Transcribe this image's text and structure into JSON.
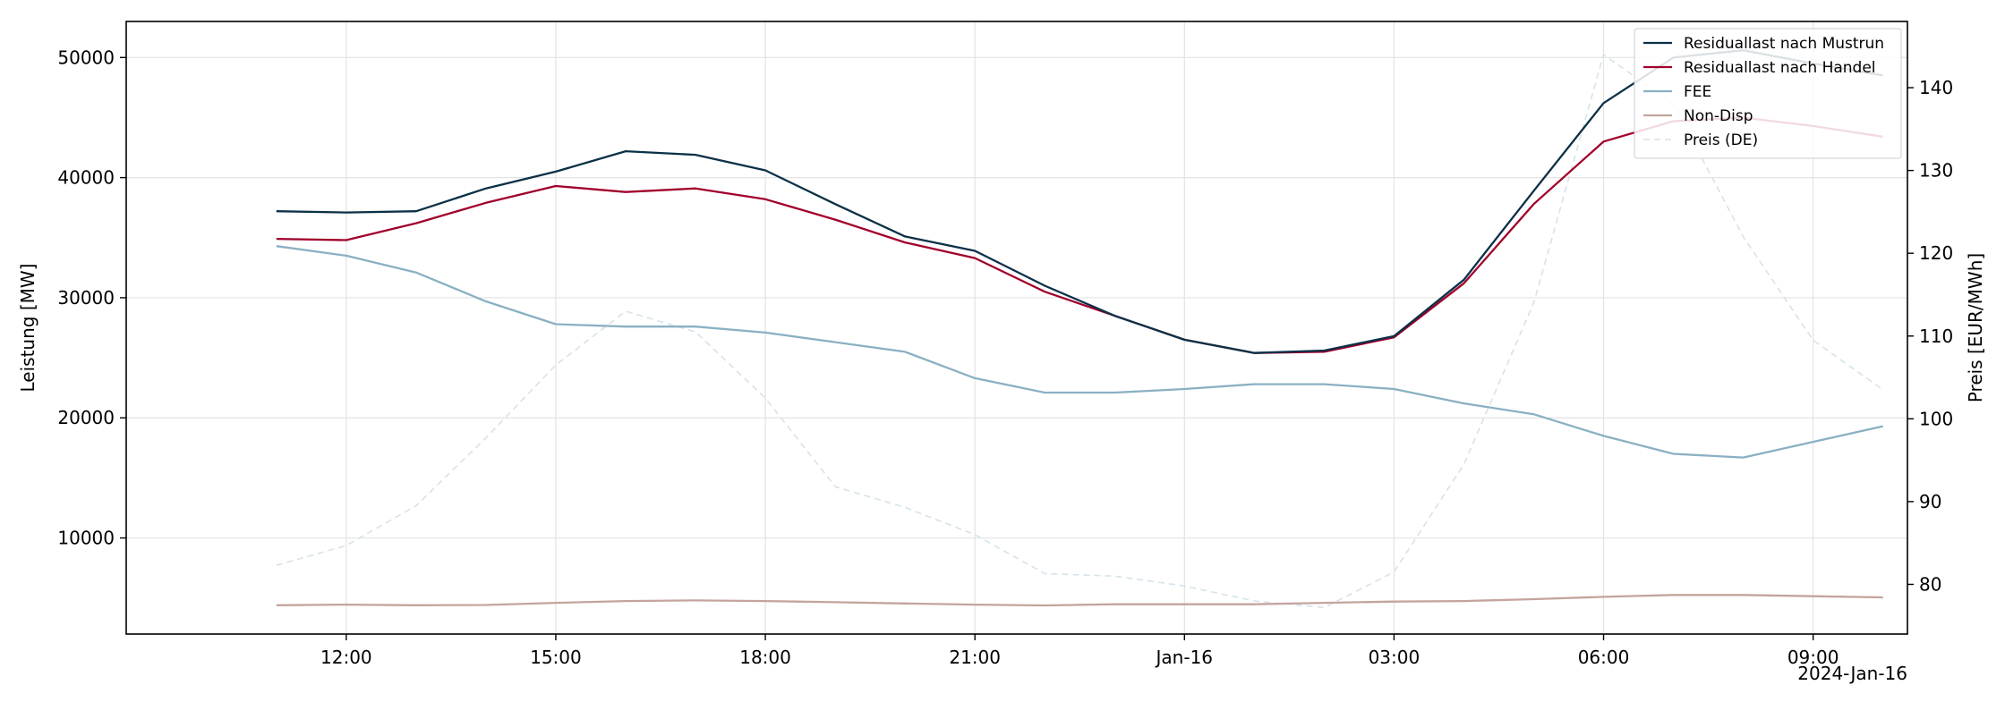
{
  "chart_data": {
    "type": "line",
    "xlabel": "",
    "ylabel_left": "Leistung [MW]",
    "ylabel_right": "Preis [EUR/MWh]",
    "x_offset_label": "2024-Jan-16",
    "x_ticks": [
      {
        "label": "12:00",
        "hour": 12
      },
      {
        "label": "15:00",
        "hour": 15
      },
      {
        "label": "18:00",
        "hour": 18
      },
      {
        "label": "21:00",
        "hour": 21
      },
      {
        "label": "Jan-16",
        "hour": 24
      },
      {
        "label": "03:00",
        "hour": 27
      },
      {
        "label": "06:00",
        "hour": 30
      },
      {
        "label": "09:00",
        "hour": 33
      }
    ],
    "x_range_hours": [
      8.85,
      34.35
    ],
    "y_left_ticks": [
      10000,
      20000,
      30000,
      40000,
      50000
    ],
    "y_left_range": [
      2000,
      53000
    ],
    "y_right_ticks": [
      80,
      90,
      100,
      110,
      120,
      130,
      140
    ],
    "y_right_range": [
      74,
      148
    ],
    "grid": true,
    "legend_position": "top-right",
    "hours": [
      11,
      12,
      13,
      14,
      15,
      16,
      17,
      18,
      19,
      20,
      21,
      22,
      23,
      24,
      25,
      26,
      27,
      28,
      29,
      30,
      31,
      32,
      33,
      34
    ],
    "series": [
      {
        "name": "Residuallast nach Mustrun",
        "axis": "left",
        "color": "#0b3047",
        "style": "solid",
        "values": [
          37200,
          37100,
          37200,
          39100,
          40500,
          42200,
          41900,
          40600,
          37800,
          35100,
          33900,
          31000,
          28500,
          26500,
          25400,
          25600,
          26800,
          31500,
          38900,
          46200,
          50000,
          50600,
          49500,
          48500
        ]
      },
      {
        "name": "Residuallast nach Handel",
        "axis": "left",
        "color": "#a1002b",
        "style": "solid",
        "values": [
          34900,
          34800,
          36200,
          37900,
          39300,
          38800,
          39100,
          38200,
          36500,
          34600,
          33300,
          30500,
          28500,
          26500,
          25400,
          25500,
          26700,
          31200,
          37800,
          43000,
          44700,
          45000,
          44300,
          43400
        ]
      },
      {
        "name": "FEE",
        "axis": "left",
        "color": "#8ab0c3",
        "style": "solid",
        "values": [
          34300,
          33500,
          32100,
          29700,
          27800,
          27600,
          27600,
          27100,
          26300,
          25500,
          23300,
          22100,
          22100,
          22400,
          22800,
          22800,
          22400,
          21200,
          20300,
          18500,
          17000,
          16700,
          18000,
          19300
        ]
      },
      {
        "name": "Non-Disp",
        "axis": "left",
        "color": "#c4a49e",
        "style": "solid",
        "values": [
          4400,
          4450,
          4400,
          4420,
          4600,
          4750,
          4800,
          4750,
          4650,
          4550,
          4450,
          4380,
          4480,
          4480,
          4480,
          4600,
          4700,
          4750,
          4900,
          5100,
          5250,
          5250,
          5150,
          5050
        ]
      },
      {
        "name": "Preis (DE)",
        "axis": "right",
        "color": "#d6e3ea",
        "style": "dashed",
        "values": [
          82.3,
          84.7,
          89.5,
          97.7,
          106.5,
          113.0,
          110.5,
          102.5,
          91.8,
          89.3,
          86.0,
          81.3,
          81.0,
          79.8,
          78.0,
          77.2,
          81.5,
          94.5,
          114.0,
          144.0,
          138.0,
          122.0,
          109.5,
          103.5
        ]
      }
    ]
  }
}
